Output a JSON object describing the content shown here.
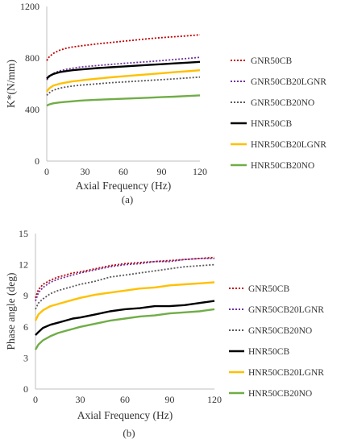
{
  "chart_data": [
    {
      "type": "line",
      "panel_label": "(a)",
      "xlabel": "Axial Frequency (Hz)",
      "ylabel": "K*(N/mm)",
      "xlim": [
        0,
        120
      ],
      "ylim": [
        0,
        1200
      ],
      "xticks": [
        0,
        30,
        60,
        90,
        120
      ],
      "yticks": [
        0,
        400,
        800,
        1200
      ],
      "grid": false,
      "legend_position": "right",
      "x": [
        0,
        2,
        5,
        10,
        15,
        20,
        25,
        30,
        40,
        50,
        60,
        70,
        80,
        90,
        100,
        110,
        120
      ],
      "series": [
        {
          "name": "GNR50CB",
          "color": "#c00000",
          "style": "dotted",
          "values": [
            780,
            810,
            835,
            860,
            875,
            885,
            892,
            898,
            910,
            920,
            930,
            940,
            950,
            958,
            965,
            972,
            980
          ]
        },
        {
          "name": "GNR50CB20LGNR",
          "color": "#7030a0",
          "style": "dotted",
          "values": [
            630,
            655,
            680,
            700,
            712,
            720,
            728,
            733,
            742,
            750,
            758,
            765,
            772,
            780,
            788,
            796,
            805
          ]
        },
        {
          "name": "GNR50CB20NO",
          "color": "#595959",
          "style": "dotted",
          "values": [
            510,
            530,
            550,
            565,
            575,
            582,
            588,
            592,
            600,
            608,
            614,
            620,
            626,
            632,
            638,
            645,
            652
          ]
        },
        {
          "name": "HNR50CB",
          "color": "#000000",
          "style": "solid",
          "values": [
            640,
            660,
            675,
            690,
            698,
            705,
            710,
            714,
            722,
            728,
            734,
            740,
            746,
            752,
            758,
            764,
            770
          ]
        },
        {
          "name": "HNR50CB20LGNR",
          "color": "#ffc000",
          "style": "solid",
          "values": [
            540,
            565,
            585,
            600,
            610,
            618,
            624,
            630,
            640,
            650,
            658,
            666,
            674,
            682,
            690,
            697,
            705
          ]
        },
        {
          "name": "HNR50CB20NO",
          "color": "#70ad47",
          "style": "solid",
          "values": [
            430,
            440,
            448,
            455,
            460,
            464,
            468,
            471,
            476,
            480,
            484,
            488,
            492,
            496,
            500,
            505,
            510
          ]
        }
      ]
    },
    {
      "type": "line",
      "panel_label": "(b)",
      "xlabel": "Axial Frequency (Hz)",
      "ylabel": "Phase angle (deg)",
      "xlim": [
        0,
        120
      ],
      "ylim": [
        0,
        15
      ],
      "xticks": [
        0,
        30,
        60,
        90,
        120
      ],
      "yticks": [
        0,
        3,
        6,
        9,
        12,
        15
      ],
      "grid": false,
      "legend_position": "right",
      "x": [
        0,
        2,
        5,
        10,
        15,
        20,
        25,
        30,
        40,
        50,
        60,
        70,
        80,
        90,
        100,
        110,
        120
      ],
      "series": [
        {
          "name": "GNR50CB",
          "color": "#c00000",
          "style": "dotted",
          "values": [
            8.8,
            9.6,
            10.1,
            10.5,
            10.8,
            11.0,
            11.2,
            11.3,
            11.6,
            11.9,
            12.1,
            12.2,
            12.3,
            12.4,
            12.5,
            12.6,
            12.7
          ]
        },
        {
          "name": "GNR50CB20LGNR",
          "color": "#7030a0",
          "style": "dotted",
          "values": [
            8.5,
            9.3,
            9.8,
            10.3,
            10.6,
            10.8,
            11.0,
            11.2,
            11.5,
            11.8,
            12.0,
            12.1,
            12.3,
            12.3,
            12.5,
            12.6,
            12.6
          ]
        },
        {
          "name": "GNR50CB20NO",
          "color": "#595959",
          "style": "dotted",
          "values": [
            7.7,
            8.3,
            8.7,
            9.2,
            9.5,
            9.7,
            9.9,
            10.1,
            10.4,
            10.8,
            11.0,
            11.2,
            11.4,
            11.6,
            11.8,
            11.9,
            12.0
          ]
        },
        {
          "name": "HNR50CB",
          "color": "#000000",
          "style": "solid",
          "values": [
            5.2,
            5.5,
            5.9,
            6.2,
            6.4,
            6.6,
            6.8,
            6.9,
            7.2,
            7.5,
            7.7,
            7.8,
            8.0,
            8.0,
            8.1,
            8.3,
            8.5
          ]
        },
        {
          "name": "HNR50CB20LGNR",
          "color": "#ffc000",
          "style": "solid",
          "values": [
            6.6,
            7.2,
            7.6,
            8.0,
            8.2,
            8.4,
            8.6,
            8.8,
            9.1,
            9.3,
            9.5,
            9.7,
            9.8,
            10.0,
            10.1,
            10.2,
            10.3
          ]
        },
        {
          "name": "HNR50CB20NO",
          "color": "#70ad47",
          "style": "solid",
          "values": [
            3.8,
            4.3,
            4.7,
            5.1,
            5.4,
            5.6,
            5.8,
            6.0,
            6.3,
            6.6,
            6.8,
            7.0,
            7.1,
            7.3,
            7.4,
            7.5,
            7.7
          ]
        }
      ]
    }
  ]
}
